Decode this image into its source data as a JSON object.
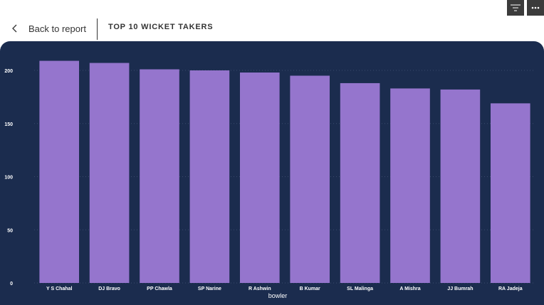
{
  "header": {
    "back_label": "Back to report",
    "title": "TOP 10 WICKET TAKERS",
    "filter_icon": "filter-lines-icon",
    "more_icon": "more-options-icon"
  },
  "colors": {
    "panel_bg": "#1b2c4e",
    "bar": "#9575cd",
    "axis_text": "#ffffff",
    "grid": "#3a4a6c"
  },
  "chart_data": {
    "type": "bar",
    "categories": [
      "Y S Chahal",
      "DJ Bravo",
      "PP Chawla",
      "SP Narine",
      "R Ashwin",
      "B Kumar",
      "SL Malinga",
      "A Mishra",
      "JJ Bumrah",
      "RA Jadeja"
    ],
    "values": [
      209,
      207,
      201,
      200,
      198,
      195,
      188,
      183,
      182,
      169
    ],
    "xlabel": "bowler",
    "ylabel": "",
    "ylim": [
      0,
      200
    ],
    "yticks": [
      0,
      50,
      100,
      150,
      200
    ],
    "grid": true
  }
}
